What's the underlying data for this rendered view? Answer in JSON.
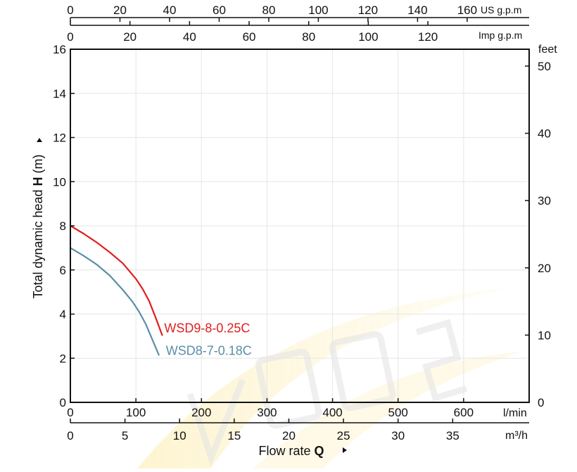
{
  "chart_data": {
    "type": "line",
    "x_axis_lmin": {
      "unit": "l/min",
      "range": [
        0,
        700
      ],
      "ticks": [
        0,
        100,
        200,
        300,
        400,
        500,
        600
      ]
    },
    "x_axis_m3h": {
      "unit": "m³/h",
      "range": [
        0,
        42
      ],
      "ticks": [
        0,
        5,
        10,
        15,
        20,
        25,
        30,
        35
      ]
    },
    "x_axis_us_gpm": {
      "unit": "US g.p.m",
      "range": [
        0,
        185
      ],
      "ticks": [
        0,
        20,
        40,
        60,
        80,
        100,
        120,
        140,
        160
      ]
    },
    "x_axis_imp_gpm": {
      "unit": "Imp g.p.m",
      "range": [
        0,
        154
      ],
      "ticks": [
        0,
        20,
        40,
        60,
        80,
        100,
        120
      ]
    },
    "y_axis_m": {
      "range": [
        0,
        16
      ],
      "ticks": [
        0,
        2,
        4,
        6,
        8,
        10,
        12,
        14,
        16
      ]
    },
    "y_axis_feet": {
      "unit": "feet",
      "range": [
        0,
        52.5
      ],
      "ticks": [
        0,
        10,
        20,
        30,
        40,
        50
      ]
    },
    "ylabel_parts": [
      "Total dynamic head ",
      "H",
      " (m)"
    ],
    "xlabel_parts": [
      "Flow rate ",
      "Q"
    ],
    "grid": true,
    "series": [
      {
        "name": "WSD9-8-0.25C",
        "color": "#e01e1e",
        "x": [
          0,
          20,
          40,
          60,
          80,
          100,
          110,
          120,
          130,
          140
        ],
        "y": [
          8.0,
          7.65,
          7.25,
          6.8,
          6.3,
          5.6,
          5.15,
          4.6,
          3.85,
          3.05
        ]
      },
      {
        "name": "WSD8-7-0.18C",
        "color": "#5b8ea6",
        "x": [
          0,
          20,
          40,
          60,
          80,
          95,
          105,
          115,
          125,
          135
        ],
        "y": [
          7.0,
          6.65,
          6.25,
          5.75,
          5.1,
          4.55,
          4.1,
          3.55,
          2.85,
          2.15
        ]
      }
    ]
  }
}
